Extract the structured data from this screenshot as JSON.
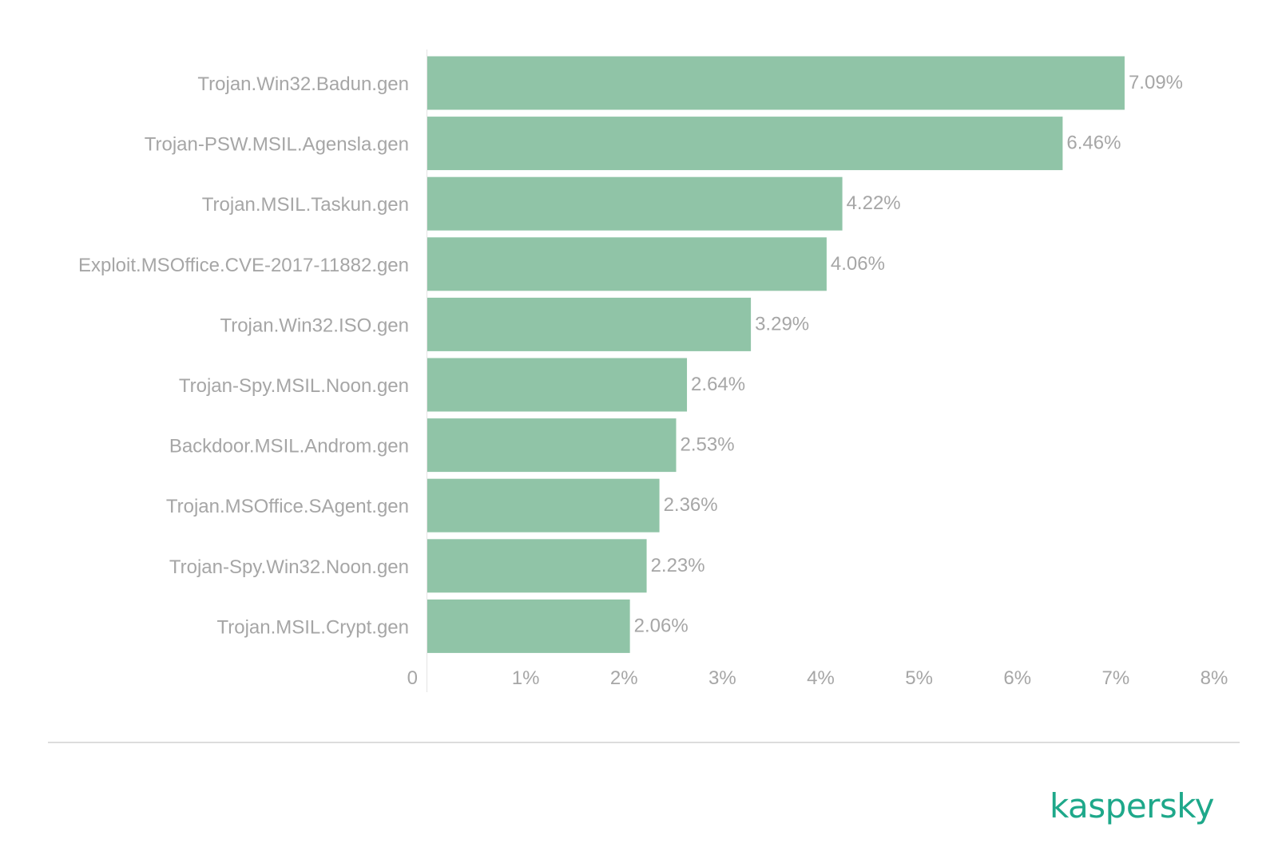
{
  "chart_data": {
    "type": "bar",
    "orientation": "horizontal",
    "categories": [
      "Trojan.Win32.Badun.gen",
      "Trojan-PSW.MSIL.Agensla.gen",
      "Trojan.MSIL.Taskun.gen",
      "Exploit.MSOffice.CVE-2017-11882.gen",
      "Trojan.Win32.ISO.gen",
      "Trojan-Spy.MSIL.Noon.gen",
      "Backdoor.MSIL.Androm.gen",
      "Trojan.MSOffice.SAgent.gen",
      "Trojan-Spy.Win32.Noon.gen",
      "Trojan.MSIL.Crypt.gen"
    ],
    "values": [
      7.09,
      6.46,
      4.22,
      4.06,
      3.29,
      2.64,
      2.53,
      2.36,
      2.23,
      2.06
    ],
    "value_labels": [
      "7.09%",
      "6.46%",
      "4.22%",
      "4.06%",
      "3.29%",
      "2.64%",
      "2.53%",
      "2.36%",
      "2.23%",
      "2.06%"
    ],
    "xlim": [
      0,
      8
    ],
    "xticks": [
      0,
      1,
      2,
      3,
      4,
      5,
      6,
      7,
      8
    ],
    "xtick_labels": [
      "0",
      "1%",
      "2%",
      "3%",
      "4%",
      "5%",
      "6%",
      "7%",
      "8%"
    ],
    "bar_color": "#90c4a7",
    "text_color": "#a6a6a6",
    "grid": false,
    "legend": "none"
  },
  "brand": {
    "name": "kaspersky",
    "color": "#1ea88a"
  }
}
